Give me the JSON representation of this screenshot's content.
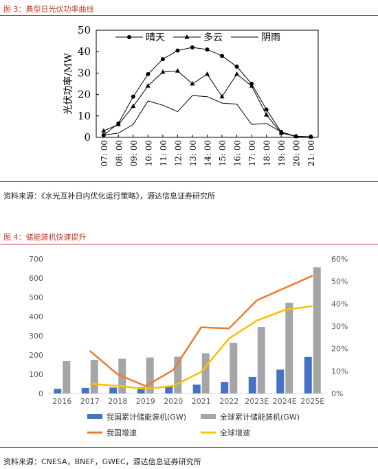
{
  "figure3": {
    "label": "图 3：典型日光伏功率曲线",
    "source": "资料来源：《水光互补日内优化运行策略》，源达信息证券研究所"
  },
  "figure4": {
    "label": "图 4：储能装机快速提升",
    "source": "资料来源：CNESA，BNEF，GWEC，源达信息证券研究所"
  },
  "chart_data": [
    {
      "type": "line",
      "title": "",
      "xlabel": "",
      "ylabel": "光伏功率/MW",
      "ylim": [
        0,
        50
      ],
      "yticks": [
        0,
        10,
        20,
        30,
        40,
        50
      ],
      "categories": [
        "07: 00",
        "08: 00",
        "09: 00",
        "10: 00",
        "11: 00",
        "12: 00",
        "13: 00",
        "14: 00",
        "15: 00",
        "16: 00",
        "17: 00",
        "18: 00",
        "19: 00",
        "20: 00",
        "21: 00"
      ],
      "legend_position": "top-right",
      "grid": false,
      "series": [
        {
          "name": "晴天",
          "marker": "circle",
          "values": [
            1,
            6.5,
            19,
            29.5,
            36.5,
            40.5,
            42,
            41,
            38,
            33,
            25,
            13,
            2.5,
            0.5,
            0.3
          ]
        },
        {
          "name": "多云",
          "marker": "triangle",
          "values": [
            3,
            6,
            14.5,
            24,
            30.5,
            31,
            25,
            29.5,
            19,
            29.5,
            24,
            10.5,
            2,
            0.5,
            0.3
          ]
        },
        {
          "name": "阴雨",
          "marker": "none",
          "values": [
            1,
            2,
            6,
            17,
            15,
            12,
            19.5,
            19,
            16,
            15.5,
            6,
            6.5,
            2.5,
            0.3,
            0.2
          ]
        }
      ]
    },
    {
      "type": "bar",
      "title": "",
      "xlabel": "",
      "ylabel": "",
      "ylim": [
        0,
        700
      ],
      "yticks": [
        "0",
        "100",
        "200",
        "300",
        "400",
        "500",
        "600",
        "700"
      ],
      "y2lim": [
        0,
        0.6
      ],
      "y2ticks": [
        "0%",
        "10%",
        "20%",
        "30%",
        "40%",
        "50%",
        "60%"
      ],
      "categories": [
        "2016",
        "2017",
        "2018",
        "2019",
        "2020",
        "2021",
        "2022",
        "2023E",
        "2024E",
        "2025E"
      ],
      "legend_position": "bottom",
      "grid": false,
      "colors": {
        "cn_bar": "#4472C4",
        "global_bar": "#A5A5A5",
        "cn_growth": "#ED7D31",
        "global_growth": "#FFC000"
      },
      "series": [
        {
          "name": "我国累计储能装机(GW)",
          "axis": "left",
          "kind": "bar",
          "values": [
            24,
            29,
            31,
            32,
            36,
            46,
            60,
            86,
            124,
            190
          ]
        },
        {
          "name": "全球累计储能装机(GW)",
          "axis": "left",
          "kind": "bar",
          "values": [
            168,
            175,
            181,
            187,
            191,
            209,
            264,
            346,
            472,
            656
          ]
        },
        {
          "name": "我国增速",
          "axis": "right",
          "kind": "line",
          "values": [
            null,
            0.19,
            0.085,
            0.033,
            0.105,
            0.295,
            0.29,
            0.415,
            0.47,
            0.525
          ]
        },
        {
          "name": "全球增速",
          "axis": "right",
          "kind": "line",
          "values": [
            null,
            0.043,
            0.034,
            0.02,
            0.034,
            0.096,
            0.245,
            0.325,
            0.372,
            0.39
          ]
        }
      ]
    }
  ]
}
